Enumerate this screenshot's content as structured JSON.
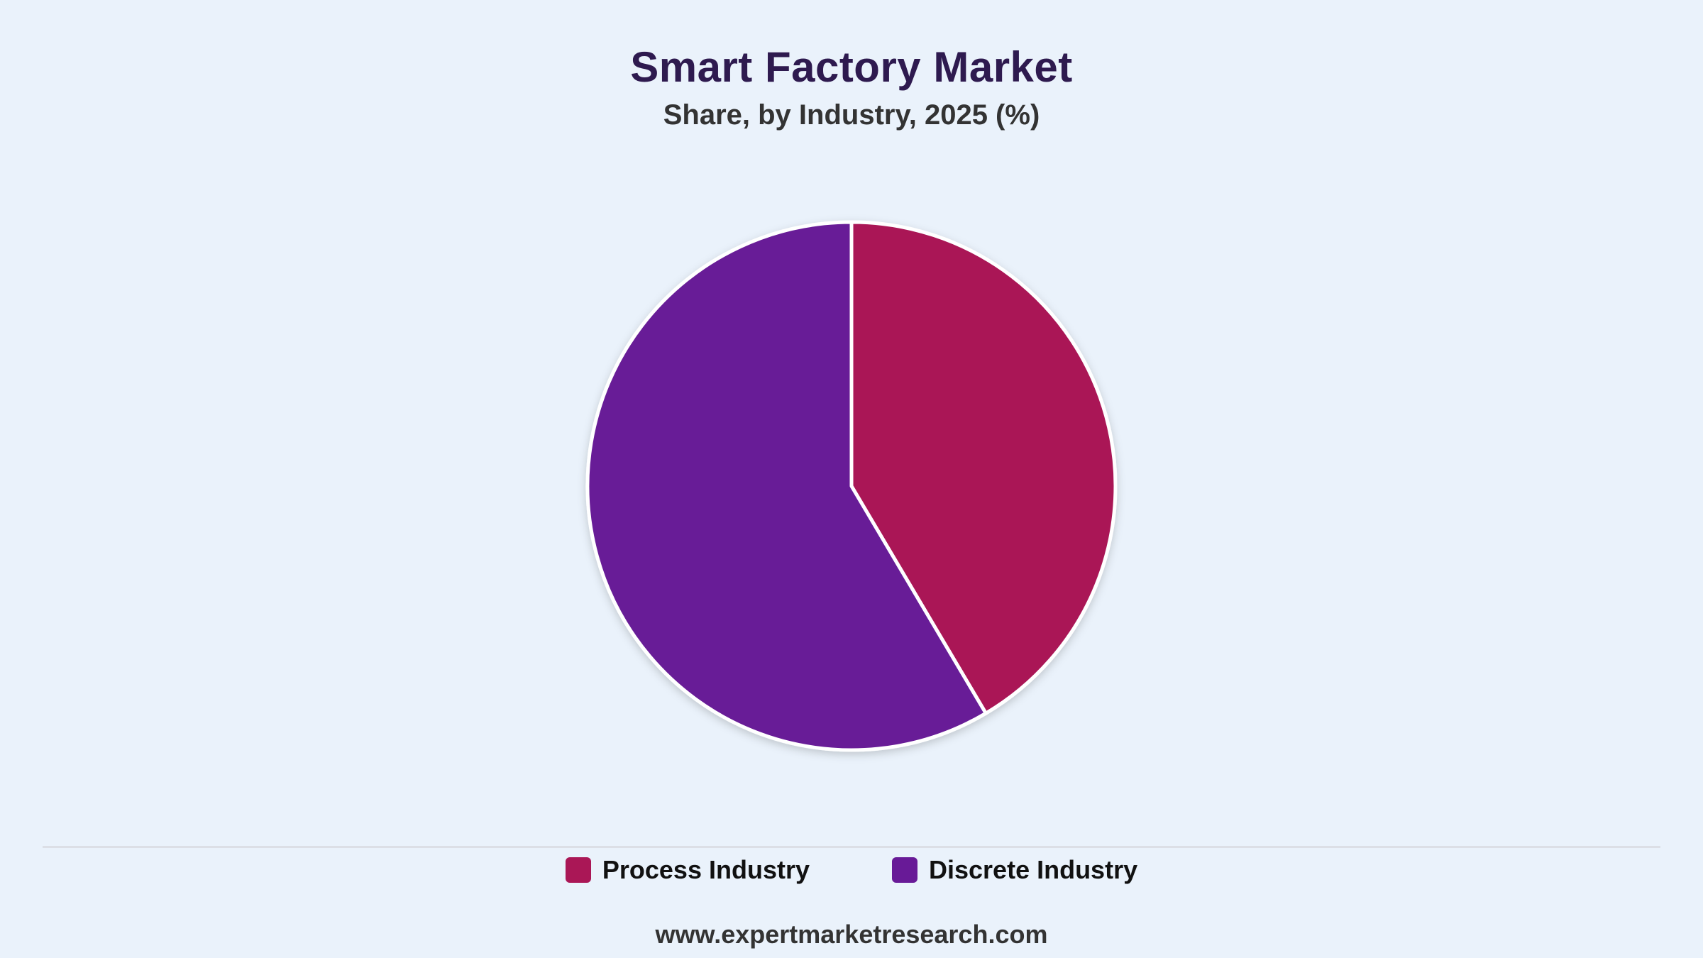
{
  "header": {
    "title": "Smart Factory Market",
    "subtitle": "Share, by Industry, 2025 (%)"
  },
  "footer": {
    "source": "www.expertmarketresearch.com"
  },
  "colors": {
    "background": "#eaf2fb",
    "title": "#2e1a4f",
    "process_industry": "#aa1756",
    "discrete_industry": "#681a97",
    "slice_border": "#ffffff"
  },
  "chart_data": {
    "type": "pie",
    "title": "Smart Factory Market",
    "subtitle": "Share, by Industry, 2025 (%)",
    "categories": [
      "Process Industry",
      "Discrete Industry"
    ],
    "values": [
      41.5,
      58.5
    ],
    "start_angle": "12 o'clock, clockwise",
    "legend_position": "bottom",
    "legend": [
      {
        "label": "Process Industry",
        "color": "#aa1756"
      },
      {
        "label": "Discrete Industry",
        "color": "#681a97"
      }
    ]
  }
}
